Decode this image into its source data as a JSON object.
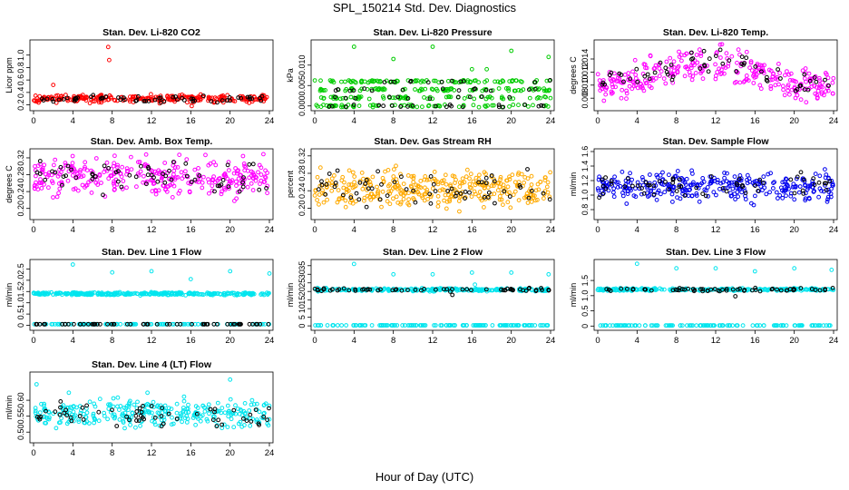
{
  "figure": {
    "title": "SPL_150214  Std. Dev. Diagnostics",
    "xlabel": "Hour of Day (UTC)"
  },
  "chart_data": [
    {
      "id": "co2",
      "type": "scatter",
      "title": "Stan. Dev. Li-820 CO2",
      "ylabel": "Licor ppm",
      "xlim": [
        0,
        24
      ],
      "ylim": [
        0.15,
        1.2
      ],
      "xticks": [
        0,
        4,
        8,
        12,
        16,
        20,
        24
      ],
      "yticks": [
        "0.2",
        "0.4",
        "0.6",
        "0.8",
        "1.0"
      ],
      "ytick_vals": [
        0.2,
        0.4,
        0.6,
        0.8,
        1.0
      ],
      "series": [
        {
          "color": "#ff0000",
          "mean": 0.3,
          "spread": 0.03,
          "n": 260
        },
        {
          "color": "#000000",
          "mean": 0.3,
          "spread": 0.025,
          "n": 60
        }
      ],
      "outliers": [
        {
          "x": 7.6,
          "y": 1.13,
          "color": "#ff0000"
        },
        {
          "x": 7.7,
          "y": 0.92,
          "color": "#ff0000"
        },
        {
          "x": 2.0,
          "y": 0.52,
          "color": "#ff0000"
        },
        {
          "x": 16.1,
          "y": 0.18,
          "color": "#ff0000"
        }
      ]
    },
    {
      "id": "pressure",
      "type": "scatter",
      "title": "Stan. Dev. Li-820 Pressure",
      "ylabel": "kPa",
      "xlim": [
        0,
        24
      ],
      "ylim": [
        -0.0005,
        0.0155
      ],
      "xticks": [
        0,
        4,
        8,
        12,
        16,
        20,
        24
      ],
      "yticks": [
        "0.000",
        "0.005",
        "0.010"
      ],
      "ytick_vals": [
        0.0,
        0.005,
        0.01
      ],
      "series": [
        {
          "color": "#00cc00",
          "mean": 0.003,
          "spread": 0.002,
          "n": 300,
          "levels": [
            0.0,
            0.002,
            0.004,
            0.006
          ]
        },
        {
          "color": "#000000",
          "mean": 0.003,
          "spread": 0.002,
          "n": 60,
          "levels": [
            0.0,
            0.002,
            0.004,
            0.006
          ]
        }
      ],
      "outliers": [
        {
          "x": 4.0,
          "y": 0.0145,
          "color": "#00cc00"
        },
        {
          "x": 12.0,
          "y": 0.0145,
          "color": "#00cc00"
        },
        {
          "x": 20.0,
          "y": 0.0135,
          "color": "#00cc00"
        },
        {
          "x": 23.8,
          "y": 0.012,
          "color": "#00cc00"
        },
        {
          "x": 8.0,
          "y": 0.0115,
          "color": "#00cc00"
        },
        {
          "x": 16.0,
          "y": 0.009,
          "color": "#00cc00"
        },
        {
          "x": 17.5,
          "y": 0.009,
          "color": "#00cc00"
        }
      ]
    },
    {
      "id": "temp",
      "type": "scatter",
      "title": "Stan. Dev. Li-820 Temp.",
      "ylabel": "degrees C",
      "xlim": [
        0,
        24
      ],
      "ylim": [
        0.0065,
        0.0165
      ],
      "xticks": [
        0,
        4,
        8,
        12,
        16,
        20,
        24
      ],
      "yticks": [
        "0.008",
        "0.010",
        "0.012",
        "0.014"
      ],
      "ytick_vals": [
        0.008,
        0.01,
        0.012,
        0.014
      ],
      "series": [
        {
          "color": "#ff00ff",
          "mean": 0.0115,
          "spread": 0.0013,
          "n": 300,
          "wave": 0.0015
        },
        {
          "color": "#000000",
          "mean": 0.0118,
          "spread": 0.001,
          "n": 60,
          "wave": 0.0015
        }
      ],
      "outliers": []
    },
    {
      "id": "boxtemp",
      "type": "scatter",
      "title": "Stan. Dev. Amb. Box Temp.",
      "ylabel": "degrees C",
      "xlim": [
        0,
        24
      ],
      "ylim": [
        0.18,
        0.335
      ],
      "xticks": [
        0,
        4,
        8,
        12,
        16,
        20,
        24
      ],
      "yticks": [
        "0.20",
        "0.24",
        "0.28",
        "0.32"
      ],
      "ytick_vals": [
        0.2,
        0.24,
        0.28,
        0.32
      ],
      "series": [
        {
          "color": "#ff00ff",
          "mean": 0.275,
          "spread": 0.022,
          "n": 320
        },
        {
          "color": "#000000",
          "mean": 0.275,
          "spread": 0.02,
          "n": 60
        }
      ],
      "outliers": []
    },
    {
      "id": "rh",
      "type": "scatter",
      "title": "Stan. Dev. Gas Stream RH",
      "ylabel": "percent",
      "xlim": [
        0,
        24
      ],
      "ylim": [
        0.18,
        0.33
      ],
      "xticks": [
        0,
        4,
        8,
        12,
        16,
        20,
        24
      ],
      "yticks": [
        "0.20",
        "0.24",
        "0.28",
        "0.32"
      ],
      "ytick_vals": [
        0.2,
        0.24,
        0.28,
        0.32
      ],
      "series": [
        {
          "color": "#ffaa00",
          "mean": 0.245,
          "spread": 0.02,
          "n": 340
        },
        {
          "color": "#000000",
          "mean": 0.245,
          "spread": 0.018,
          "n": 60
        }
      ],
      "outliers": []
    },
    {
      "id": "sampleflow",
      "type": "scatter",
      "title": "Stan. Dev. Sample Flow",
      "ylabel": "ml/min",
      "xlim": [
        0,
        24
      ],
      "ylim": [
        0.7,
        1.6
      ],
      "xticks": [
        0,
        4,
        8,
        12,
        16,
        20,
        24
      ],
      "yticks": [
        "0.8",
        "1.0",
        "1.2",
        "1.4",
        "1.6"
      ],
      "ytick_vals": [
        0.8,
        1.0,
        1.2,
        1.4,
        1.6
      ],
      "series": [
        {
          "color": "#0000ee",
          "mean": 1.12,
          "spread": 0.1,
          "n": 320
        },
        {
          "color": "#000000",
          "mean": 1.12,
          "spread": 0.08,
          "n": 60
        }
      ],
      "outliers": []
    },
    {
      "id": "line1",
      "type": "scatter",
      "title": "Stan. Dev. Line 1 Flow",
      "ylabel": "ml/min",
      "xlim": [
        0,
        24
      ],
      "ylim": [
        -0.1,
        2.8
      ],
      "xticks": [
        0,
        4,
        8,
        12,
        16,
        20,
        24
      ],
      "yticks": [
        "0",
        "0.5",
        "1.0",
        "1.5",
        "2.0",
        "2.5"
      ],
      "ytick_vals": [
        0,
        0.5,
        1.0,
        1.5,
        2.0,
        2.5
      ],
      "series": [
        {
          "color": "#00e5ee",
          "mean": 1.4,
          "spread": 0.03,
          "n": 300
        },
        {
          "color": "#00e5ee",
          "mean": 0.05,
          "spread": 0.0,
          "n": 120
        },
        {
          "color": "#000000",
          "mean": 0.05,
          "spread": 0.0,
          "n": 60
        }
      ],
      "outliers": [
        {
          "x": 4.0,
          "y": 2.7,
          "color": "#00e5ee"
        },
        {
          "x": 8.0,
          "y": 2.35,
          "color": "#00e5ee"
        },
        {
          "x": 12.0,
          "y": 2.4,
          "color": "#00e5ee"
        },
        {
          "x": 16.0,
          "y": 2.05,
          "color": "#00e5ee"
        },
        {
          "x": 20.0,
          "y": 2.4,
          "color": "#00e5ee"
        },
        {
          "x": 24.0,
          "y": 2.3,
          "color": "#00e5ee"
        }
      ]
    },
    {
      "id": "line2",
      "type": "scatter",
      "title": "Stan. Dev. Line 2 Flow",
      "ylabel": "ml/min",
      "xlim": [
        0,
        24
      ],
      "ylim": [
        -1,
        37
      ],
      "xticks": [
        0,
        4,
        8,
        12,
        16,
        20,
        24
      ],
      "yticks": [
        "0",
        "5",
        "10",
        "15",
        "20",
        "25",
        "30",
        "35"
      ],
      "ytick_vals": [
        0,
        5,
        10,
        15,
        20,
        25,
        30,
        35
      ],
      "series": [
        {
          "color": "#00e5ee",
          "mean": 21,
          "spread": 0.4,
          "n": 240
        },
        {
          "color": "#00e5ee",
          "mean": 0.3,
          "spread": 0.0,
          "n": 120
        },
        {
          "color": "#000000",
          "mean": 21,
          "spread": 0.4,
          "n": 60
        }
      ],
      "outliers": [
        {
          "x": 4.0,
          "y": 36,
          "color": "#00e5ee"
        },
        {
          "x": 8.0,
          "y": 30,
          "color": "#00e5ee"
        },
        {
          "x": 12.0,
          "y": 30,
          "color": "#00e5ee"
        },
        {
          "x": 16.0,
          "y": 31,
          "color": "#00e5ee"
        },
        {
          "x": 20.0,
          "y": 31,
          "color": "#00e5ee"
        },
        {
          "x": 23.8,
          "y": 30,
          "color": "#00e5ee"
        },
        {
          "x": 14.0,
          "y": 18,
          "color": "#000000"
        },
        {
          "x": 16.3,
          "y": 24,
          "color": "#00e5ee"
        }
      ]
    },
    {
      "id": "line3",
      "type": "scatter",
      "title": "Stan. Dev. Line 3 Flow",
      "ylabel": "ml/min",
      "xlim": [
        0,
        24
      ],
      "ylim": [
        -0.05,
        2.1
      ],
      "xticks": [
        0,
        4,
        8,
        12,
        16,
        20,
        24
      ],
      "yticks": [
        "0",
        "0.5",
        "1.0",
        "1.5"
      ],
      "ytick_vals": [
        0,
        0.5,
        1.0,
        1.5
      ],
      "series": [
        {
          "color": "#00e5ee",
          "mean": 1.2,
          "spread": 0.02,
          "n": 240
        },
        {
          "color": "#00e5ee",
          "mean": 0.02,
          "spread": 0.0,
          "n": 120
        },
        {
          "color": "#000000",
          "mean": 1.2,
          "spread": 0.03,
          "n": 60
        }
      ],
      "outliers": [
        {
          "x": 4.0,
          "y": 2.05,
          "color": "#00e5ee"
        },
        {
          "x": 8.0,
          "y": 1.9,
          "color": "#00e5ee"
        },
        {
          "x": 12.0,
          "y": 1.9,
          "color": "#00e5ee"
        },
        {
          "x": 16.0,
          "y": 1.8,
          "color": "#00e5ee"
        },
        {
          "x": 20.0,
          "y": 1.9,
          "color": "#00e5ee"
        },
        {
          "x": 23.8,
          "y": 1.85,
          "color": "#00e5ee"
        },
        {
          "x": 14.0,
          "y": 0.98,
          "color": "#000000"
        }
      ]
    },
    {
      "id": "line4",
      "type": "scatter",
      "title": "Stan. Dev. Line 4 (LT) Flow",
      "ylabel": "ml/min",
      "xlim": [
        0,
        24
      ],
      "ylim": [
        0.475,
        0.68
      ],
      "xticks": [
        0,
        4,
        8,
        12,
        16,
        20,
        24
      ],
      "yticks": [
        "0.50",
        "0.55",
        "0.60"
      ],
      "ytick_vals": [
        0.5,
        0.55,
        0.6
      ],
      "series": [
        {
          "color": "#00e5ee",
          "mean": 0.56,
          "spread": 0.022,
          "n": 300
        },
        {
          "color": "#000000",
          "mean": 0.555,
          "spread": 0.02,
          "n": 60
        }
      ],
      "outliers": [
        {
          "x": 0.3,
          "y": 0.65,
          "color": "#00e5ee"
        },
        {
          "x": 20.0,
          "y": 0.665,
          "color": "#00e5ee"
        }
      ]
    }
  ]
}
